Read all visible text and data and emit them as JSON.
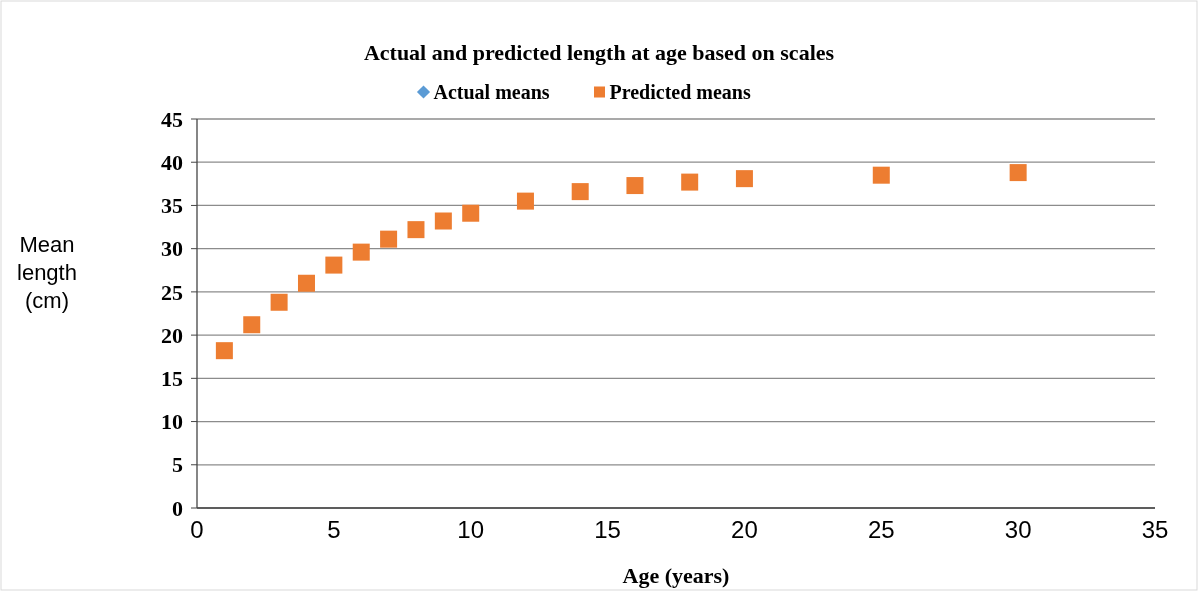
{
  "chart_data": {
    "type": "scatter",
    "title": "Actual and predicted length at age based on scales",
    "xlabel": "Age (years)",
    "ylabel": "Mean length (cm)",
    "x": [
      1,
      2,
      3,
      4,
      5,
      6,
      7,
      8,
      9,
      10,
      12,
      14,
      16,
      18,
      20,
      25,
      30
    ],
    "series": [
      {
        "name": "Actual means",
        "color": "#5b9bd5",
        "marker": "diamond",
        "values": [
          null,
          null,
          null,
          null,
          null,
          null,
          null,
          null,
          null,
          null,
          null,
          null,
          null,
          null,
          null,
          null,
          null
        ]
      },
      {
        "name": "Predicted means",
        "color": "#ed7d31",
        "marker": "square",
        "values": [
          18.2,
          21.2,
          23.8,
          26.0,
          28.1,
          29.6,
          31.1,
          32.2,
          33.2,
          34.1,
          35.5,
          36.6,
          37.3,
          37.7,
          38.1,
          38.5,
          38.8
        ]
      }
    ],
    "xlim": [
      0,
      35
    ],
    "xticks": [
      0,
      5,
      10,
      15,
      20,
      25,
      30,
      35
    ],
    "ylim": [
      0,
      45
    ],
    "yticks": [
      0,
      5,
      10,
      15,
      20,
      25,
      30,
      35,
      40,
      45
    ],
    "grid": "y",
    "legend": "top"
  }
}
